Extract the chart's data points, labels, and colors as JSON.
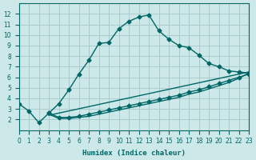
{
  "title": "",
  "xlabel": "Humidex (Indice chaleur)",
  "ylabel": "",
  "background_color": "#cce8e8",
  "grid_color": "#aacccc",
  "line_color": "#006666",
  "xlim": [
    0,
    23
  ],
  "ylim": [
    1,
    13
  ],
  "xticks": [
    0,
    1,
    2,
    3,
    4,
    5,
    6,
    7,
    8,
    9,
    10,
    11,
    12,
    13,
    14,
    15,
    16,
    17,
    18,
    19,
    20,
    21,
    22,
    23
  ],
  "yticks": [
    2,
    3,
    4,
    5,
    6,
    7,
    8,
    9,
    10,
    11,
    12
  ],
  "series1_x": [
    0,
    1,
    2,
    3,
    4,
    5,
    6,
    7,
    8,
    9,
    10,
    11,
    12,
    13,
    14,
    15,
    16,
    17,
    18,
    19,
    20,
    21,
    22,
    23
  ],
  "series1_y": [
    3.5,
    2.8,
    1.7,
    2.6,
    3.5,
    4.8,
    6.3,
    7.6,
    9.2,
    9.3,
    10.6,
    11.3,
    11.7,
    11.9,
    10.4,
    9.6,
    9.0,
    8.8,
    8.1,
    7.3,
    7.0,
    6.6,
    6.5,
    6.4
  ],
  "series2_x": [
    3,
    4,
    5,
    6,
    7,
    8,
    9,
    10,
    11,
    12,
    13,
    14,
    15,
    16,
    17,
    18,
    19,
    20,
    21,
    22,
    23
  ],
  "series2_y": [
    2.6,
    2.2,
    2.2,
    2.3,
    2.5,
    2.7,
    2.9,
    3.1,
    3.3,
    3.5,
    3.7,
    3.9,
    4.1,
    4.3,
    4.6,
    4.8,
    5.1,
    5.4,
    5.7,
    6.0,
    6.3
  ],
  "series3_x": [
    3,
    4,
    5,
    6,
    7,
    8,
    9,
    10,
    11,
    12,
    13,
    14,
    15,
    16,
    17,
    18,
    19,
    20,
    21,
    22,
    23
  ],
  "series3_y": [
    2.5,
    2.1,
    2.1,
    2.2,
    2.3,
    2.5,
    2.7,
    2.9,
    3.1,
    3.3,
    3.5,
    3.7,
    3.9,
    4.1,
    4.4,
    4.6,
    4.9,
    5.2,
    5.5,
    5.9,
    6.4
  ],
  "series4_x": [
    3,
    23
  ],
  "series4_y": [
    2.4,
    6.5
  ]
}
